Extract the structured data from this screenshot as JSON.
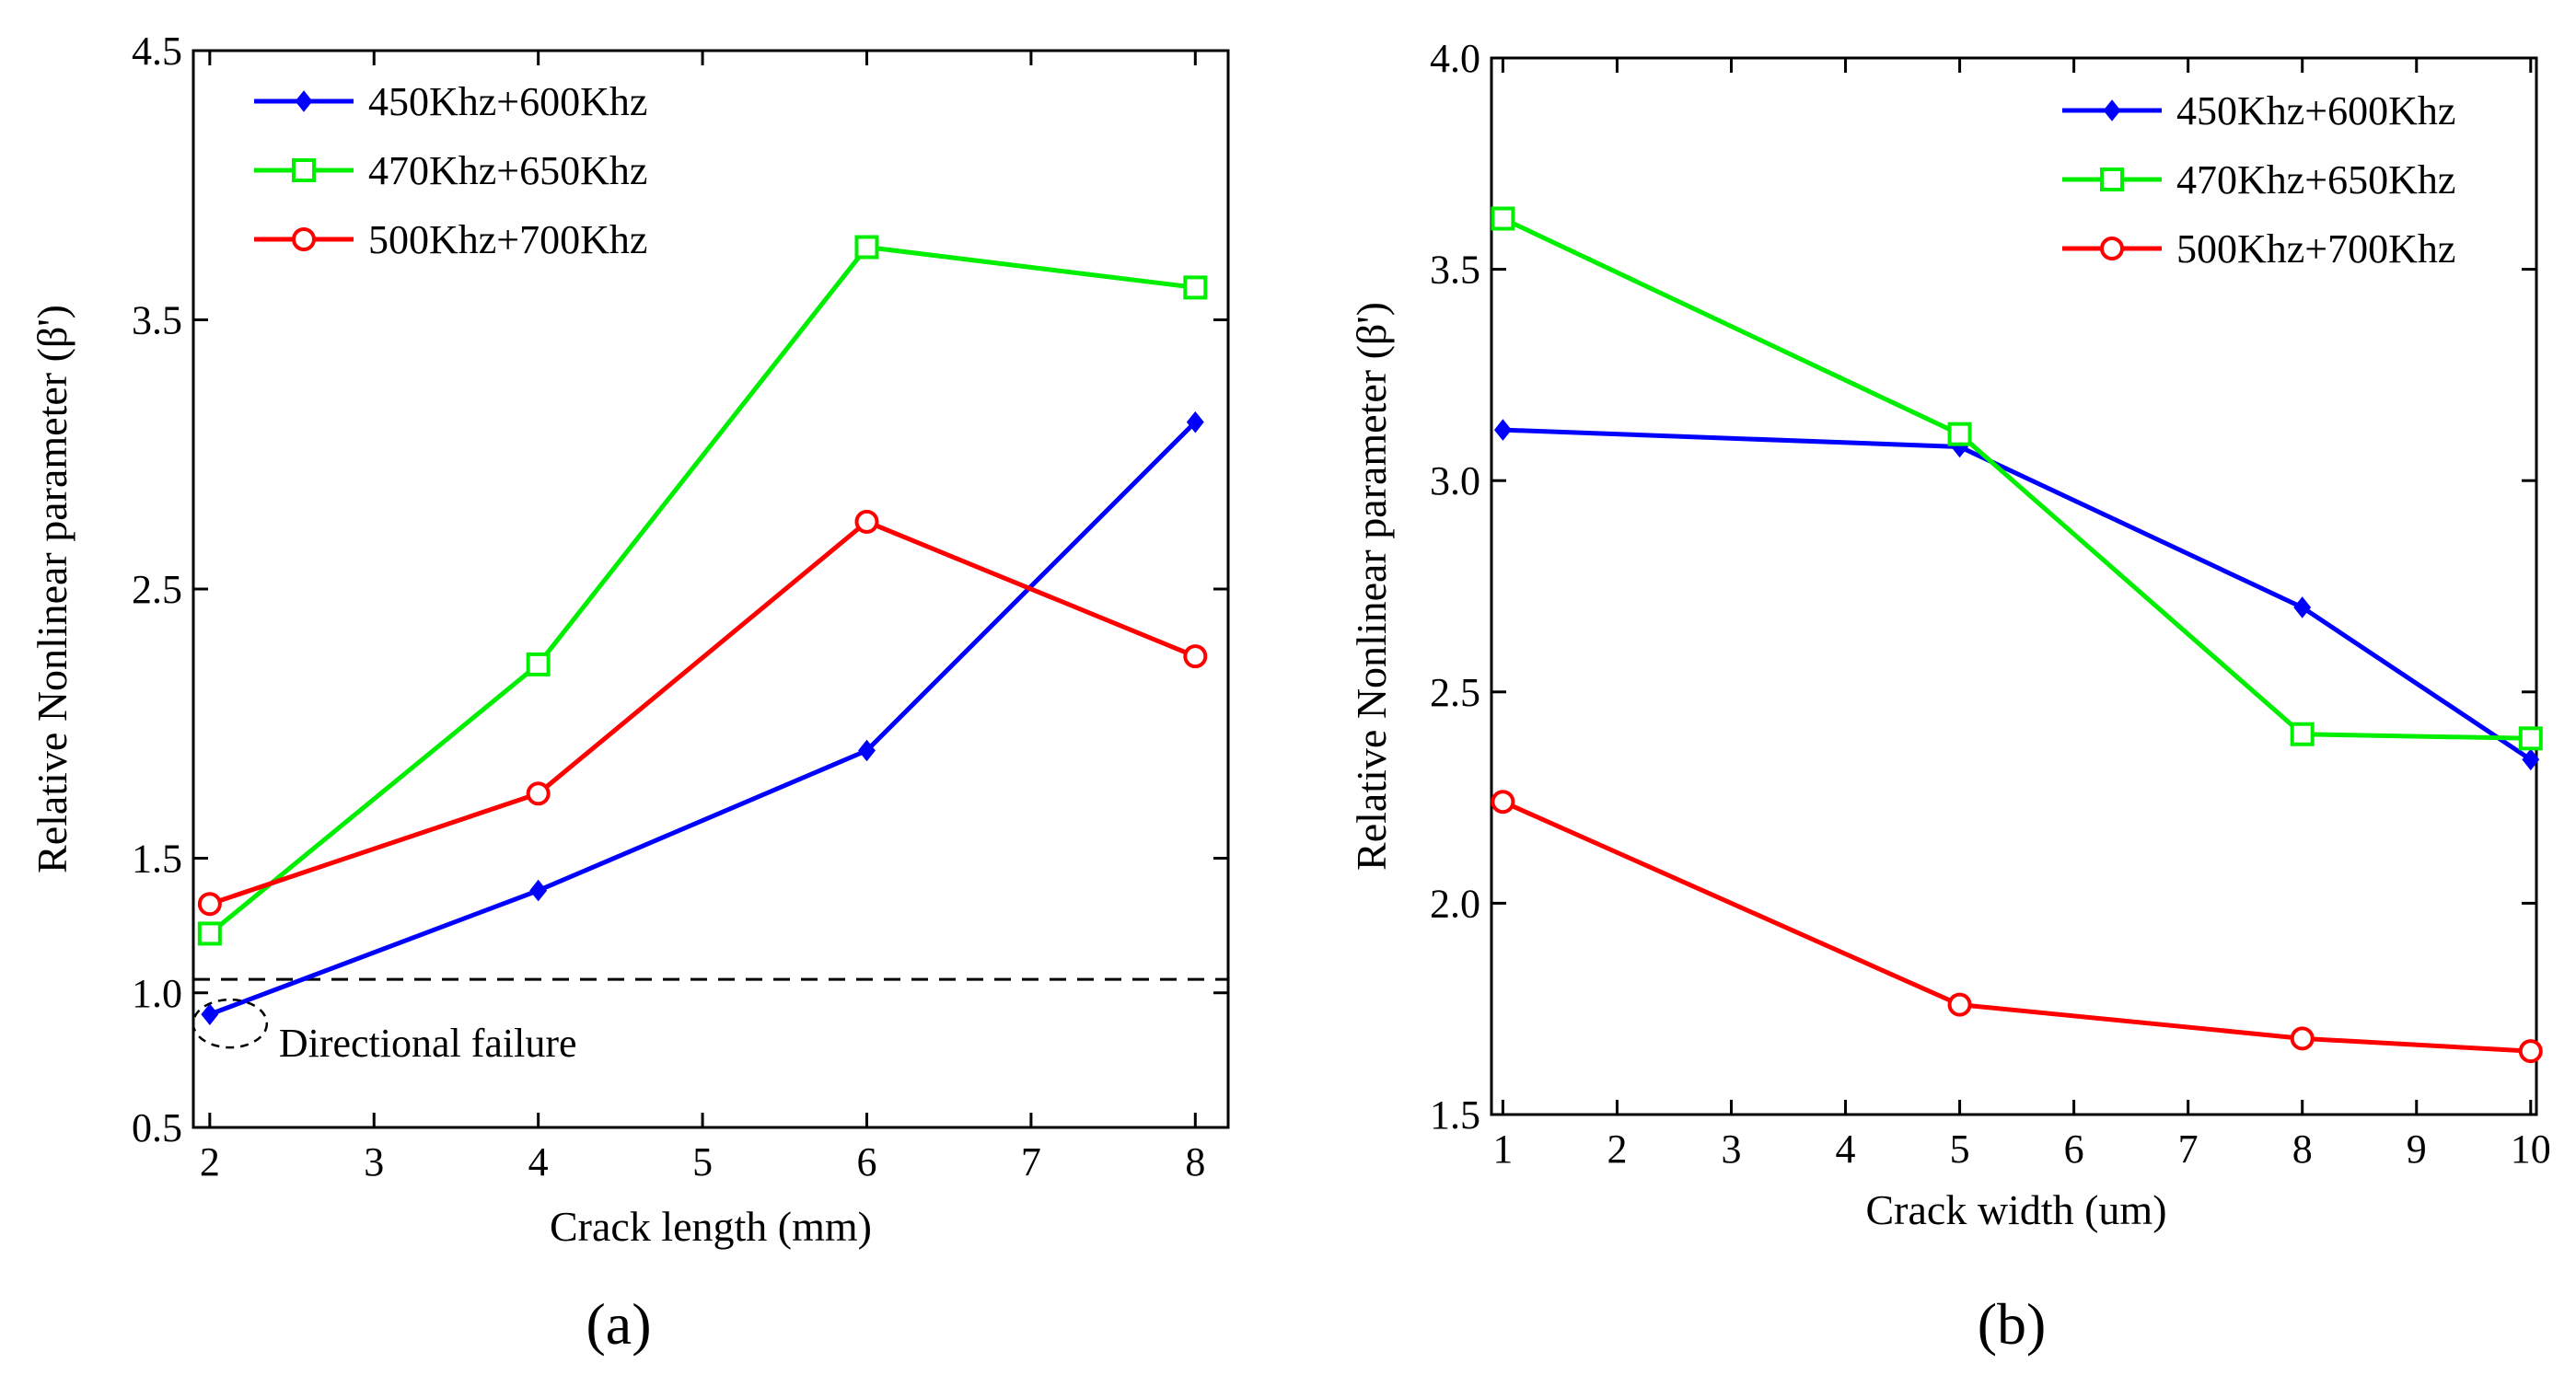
{
  "chart_data": [
    {
      "type": "line",
      "panel_label": "(a)",
      "xlabel": "Crack length (mm)",
      "ylabel": "Relative Nonlinear parameter (β')",
      "xlim": [
        1.9,
        8.2
      ],
      "ylim": [
        0.5,
        4.5
      ],
      "xticks": [
        2,
        3,
        4,
        5,
        6,
        7,
        8
      ],
      "yticks": [
        0.5,
        1.0,
        1.5,
        2.5,
        3.5,
        4.5
      ],
      "ytick_labels": [
        "0.5",
        "1.0",
        "1.5",
        "2.5",
        "3.5",
        "4.5"
      ],
      "grid": false,
      "legend_position": "top-left",
      "x": [
        2,
        4,
        6,
        8
      ],
      "series": [
        {
          "name": "450Khz+600Khz",
          "color": "#0000ff",
          "marker": "diamond",
          "values": [
            0.92,
            1.38,
            1.9,
            3.12
          ]
        },
        {
          "name": "470Khz+650Khz",
          "color": "#00ee00",
          "marker": "square",
          "values": [
            1.22,
            2.22,
            3.77,
            3.62
          ]
        },
        {
          "name": "500Khz+700Khz",
          "color": "#ff0000",
          "marker": "circle",
          "values": [
            1.33,
            1.74,
            2.75,
            2.25
          ]
        }
      ],
      "reference_line": {
        "y": 1.05,
        "style": "dashed"
      },
      "annotation": {
        "text": "Directional failure",
        "x": 2,
        "y": 0.92
      }
    },
    {
      "type": "line",
      "panel_label": "(b)",
      "xlabel": "Crack width (um)",
      "ylabel": "Relative Nonlinear parameter (β')",
      "xlim": [
        0.9,
        10.05
      ],
      "ylim": [
        1.5,
        4.0
      ],
      "xticks": [
        1,
        2,
        3,
        4,
        5,
        6,
        7,
        8,
        9,
        10
      ],
      "yticks": [
        1.5,
        2.0,
        2.5,
        3.0,
        3.5,
        4.0
      ],
      "ytick_labels": [
        "1.5",
        "2.0",
        "2.5",
        "3.0",
        "3.5",
        "4.0"
      ],
      "grid": false,
      "legend_position": "top-right",
      "x": [
        1,
        5,
        8,
        10
      ],
      "series": [
        {
          "name": "450Khz+600Khz",
          "color": "#0000ff",
          "marker": "diamond",
          "values": [
            3.12,
            3.08,
            2.7,
            2.34
          ]
        },
        {
          "name": "470Khz+650Khz",
          "color": "#00ee00",
          "marker": "square",
          "values": [
            3.62,
            3.11,
            2.4,
            2.39
          ]
        },
        {
          "name": "500Khz+700Khz",
          "color": "#ff0000",
          "marker": "circle",
          "values": [
            2.24,
            1.76,
            1.68,
            1.65
          ]
        }
      ]
    }
  ]
}
